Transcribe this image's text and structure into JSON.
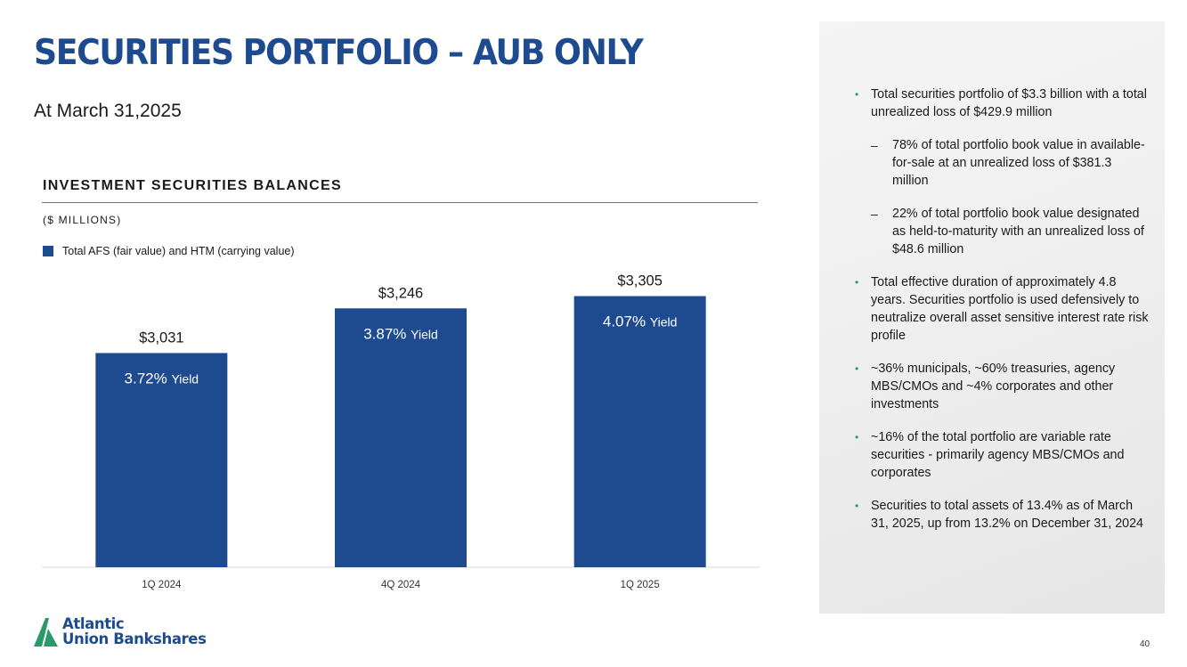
{
  "header": {
    "title": "SECURITIES PORTFOLIO – AUB ONLY",
    "subtitle": "At March 31,2025"
  },
  "chart_section": {
    "title": "INVESTMENT SECURITIES BALANCES",
    "units": "($ MILLIONS)",
    "legend": "Total AFS (fair value) and HTM (carrying value)"
  },
  "chart_data": {
    "type": "bar",
    "categories": [
      "1Q 2024",
      "4Q 2024",
      "1Q 2025"
    ],
    "series": [
      {
        "name": "Total AFS (fair value) and HTM (carrying value)",
        "values": [
          3031,
          3246,
          3305
        ]
      }
    ],
    "value_labels": [
      "$3,031",
      "$3,246",
      "$3,305"
    ],
    "yield_values": [
      "3.72%",
      "3.87%",
      "4.07%"
    ],
    "yield_word": "Yield",
    "color": "#1e4b8f",
    "ylim": [
      2000,
      3500
    ],
    "grid": false
  },
  "bullets": [
    {
      "level": 1,
      "text": "Total securities portfolio of $3.3 billion with a total unrealized loss of $429.9 million"
    },
    {
      "level": 2,
      "text": "78% of total portfolio book value in available-for-sale at an unrealized loss of $381.3 million"
    },
    {
      "level": 2,
      "text": "22% of total portfolio book value designated as held-to-maturity with an unrealized loss of $48.6 million"
    },
    {
      "level": 1,
      "text": "Total effective duration of approximately 4.8 years. Securities portfolio is used defensively to neutralize overall asset sensitive interest rate risk profile"
    },
    {
      "level": 1,
      "text": "~36% municipals, ~60% treasuries, agency MBS/CMOs and ~4% corporates and other investments"
    },
    {
      "level": 1,
      "text": "~16% of the total portfolio are variable rate securities - primarily agency MBS/CMOs and corporates"
    },
    {
      "level": 1,
      "text": "Securities to total assets of 13.4% as of March 31, 2025, up from 13.2% on December 31, 2024"
    }
  ],
  "footer": {
    "logo_line1": "Atlantic",
    "logo_line2": "Union Bankshares",
    "page_number": "40"
  },
  "colors": {
    "brand_blue": "#1e4b8f",
    "accent_green": "#2a9a6b"
  }
}
